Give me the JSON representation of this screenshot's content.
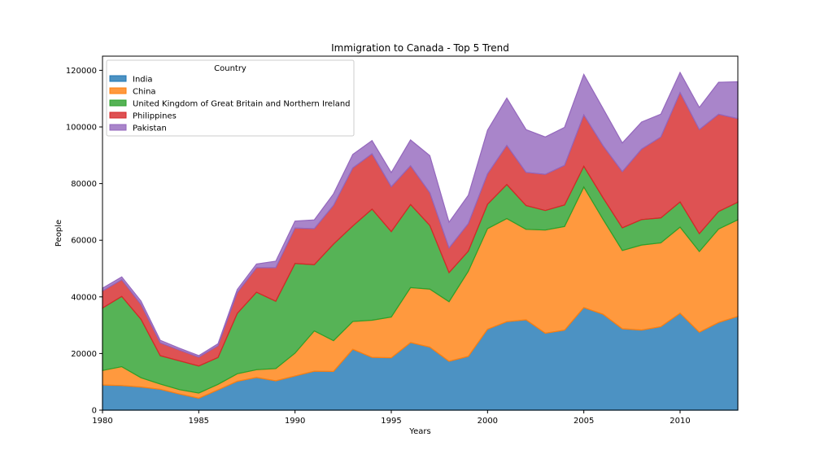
{
  "chart_data": {
    "type": "area",
    "stacked": true,
    "title": "Immigration to Canada - Top 5 Trend",
    "xlabel": "Years",
    "ylabel": "People",
    "xlim": [
      1980,
      2013
    ],
    "ylim": [
      0,
      125000
    ],
    "xticks": [
      1980,
      1985,
      1990,
      1995,
      2000,
      2005,
      2010
    ],
    "yticks": [
      0,
      20000,
      40000,
      60000,
      80000,
      100000,
      120000
    ],
    "grid": false,
    "legend": {
      "title": "Country",
      "position": "top-left"
    },
    "x": [
      1980,
      1981,
      1982,
      1983,
      1984,
      1985,
      1986,
      1987,
      1988,
      1989,
      1990,
      1991,
      1992,
      1993,
      1994,
      1995,
      1996,
      1997,
      1998,
      1999,
      2000,
      2001,
      2002,
      2003,
      2004,
      2005,
      2006,
      2007,
      2008,
      2009,
      2010,
      2011,
      2012,
      2013
    ],
    "series": [
      {
        "name": "India",
        "color": "#1f77b4",
        "values": [
          8880,
          8670,
          8147,
          7338,
          5704,
          4211,
          7150,
          10189,
          11522,
          10343,
          12041,
          13734,
          13673,
          21496,
          18620,
          18489,
          23859,
          22268,
          17241,
          18974,
          28572,
          31223,
          31889,
          27155,
          28235,
          36210,
          33848,
          28742,
          28261,
          29456,
          34235,
          27509,
          30933,
          33087
        ]
      },
      {
        "name": "China",
        "color": "#ff7f0e",
        "values": [
          5123,
          6682,
          3308,
          1863,
          1527,
          1816,
          1960,
          2643,
          2758,
          4323,
          8076,
          14255,
          10846,
          9817,
          13128,
          14398,
          19415,
          20475,
          21049,
          30069,
          35529,
          36434,
          31961,
          36439,
          36619,
          42584,
          33518,
          27642,
          30037,
          29622,
          30391,
          28502,
          33024,
          34129
        ]
      },
      {
        "name": "United Kingdom of Great Britain and Northern Ireland",
        "color": "#2ca02c",
        "values": [
          22045,
          24796,
          20620,
          10015,
          10170,
          9564,
          9470,
          21337,
          27359,
          23795,
          31668,
          23380,
          34123,
          33720,
          39231,
          30145,
          29322,
          22500,
          10263,
          7100,
          8600,
          12000,
          8400,
          6900,
          7600,
          7300,
          7600,
          8000,
          9000,
          8800,
          8900,
          6300,
          6200,
          6200
        ]
      },
      {
        "name": "Philippines",
        "color": "#d62728",
        "values": [
          6051,
          5921,
          5249,
          4562,
          3801,
          3150,
          4166,
          7360,
          8639,
          11865,
          12509,
          12718,
          13670,
          20479,
          19532,
          15864,
          13692,
          11549,
          8735,
          9734,
          10763,
          13836,
          11707,
          12758,
          14004,
          18139,
          18400,
          19837,
          24887,
          28573,
          38617,
          36765,
          34315,
          29544
        ]
      },
      {
        "name": "Pakistan",
        "color": "#9467bd",
        "values": [
          978,
          972,
          1201,
          900,
          668,
          514,
          691,
          1072,
          1334,
          2261,
          2470,
          3079,
          4071,
          4777,
          4666,
          4994,
          9125,
          13073,
          9068,
          9979,
          15400,
          16708,
          15110,
          13205,
          13399,
          14314,
          13127,
          10124,
          9545,
          8051,
          7100,
          7800,
          11300,
          13000
        ]
      }
    ]
  }
}
